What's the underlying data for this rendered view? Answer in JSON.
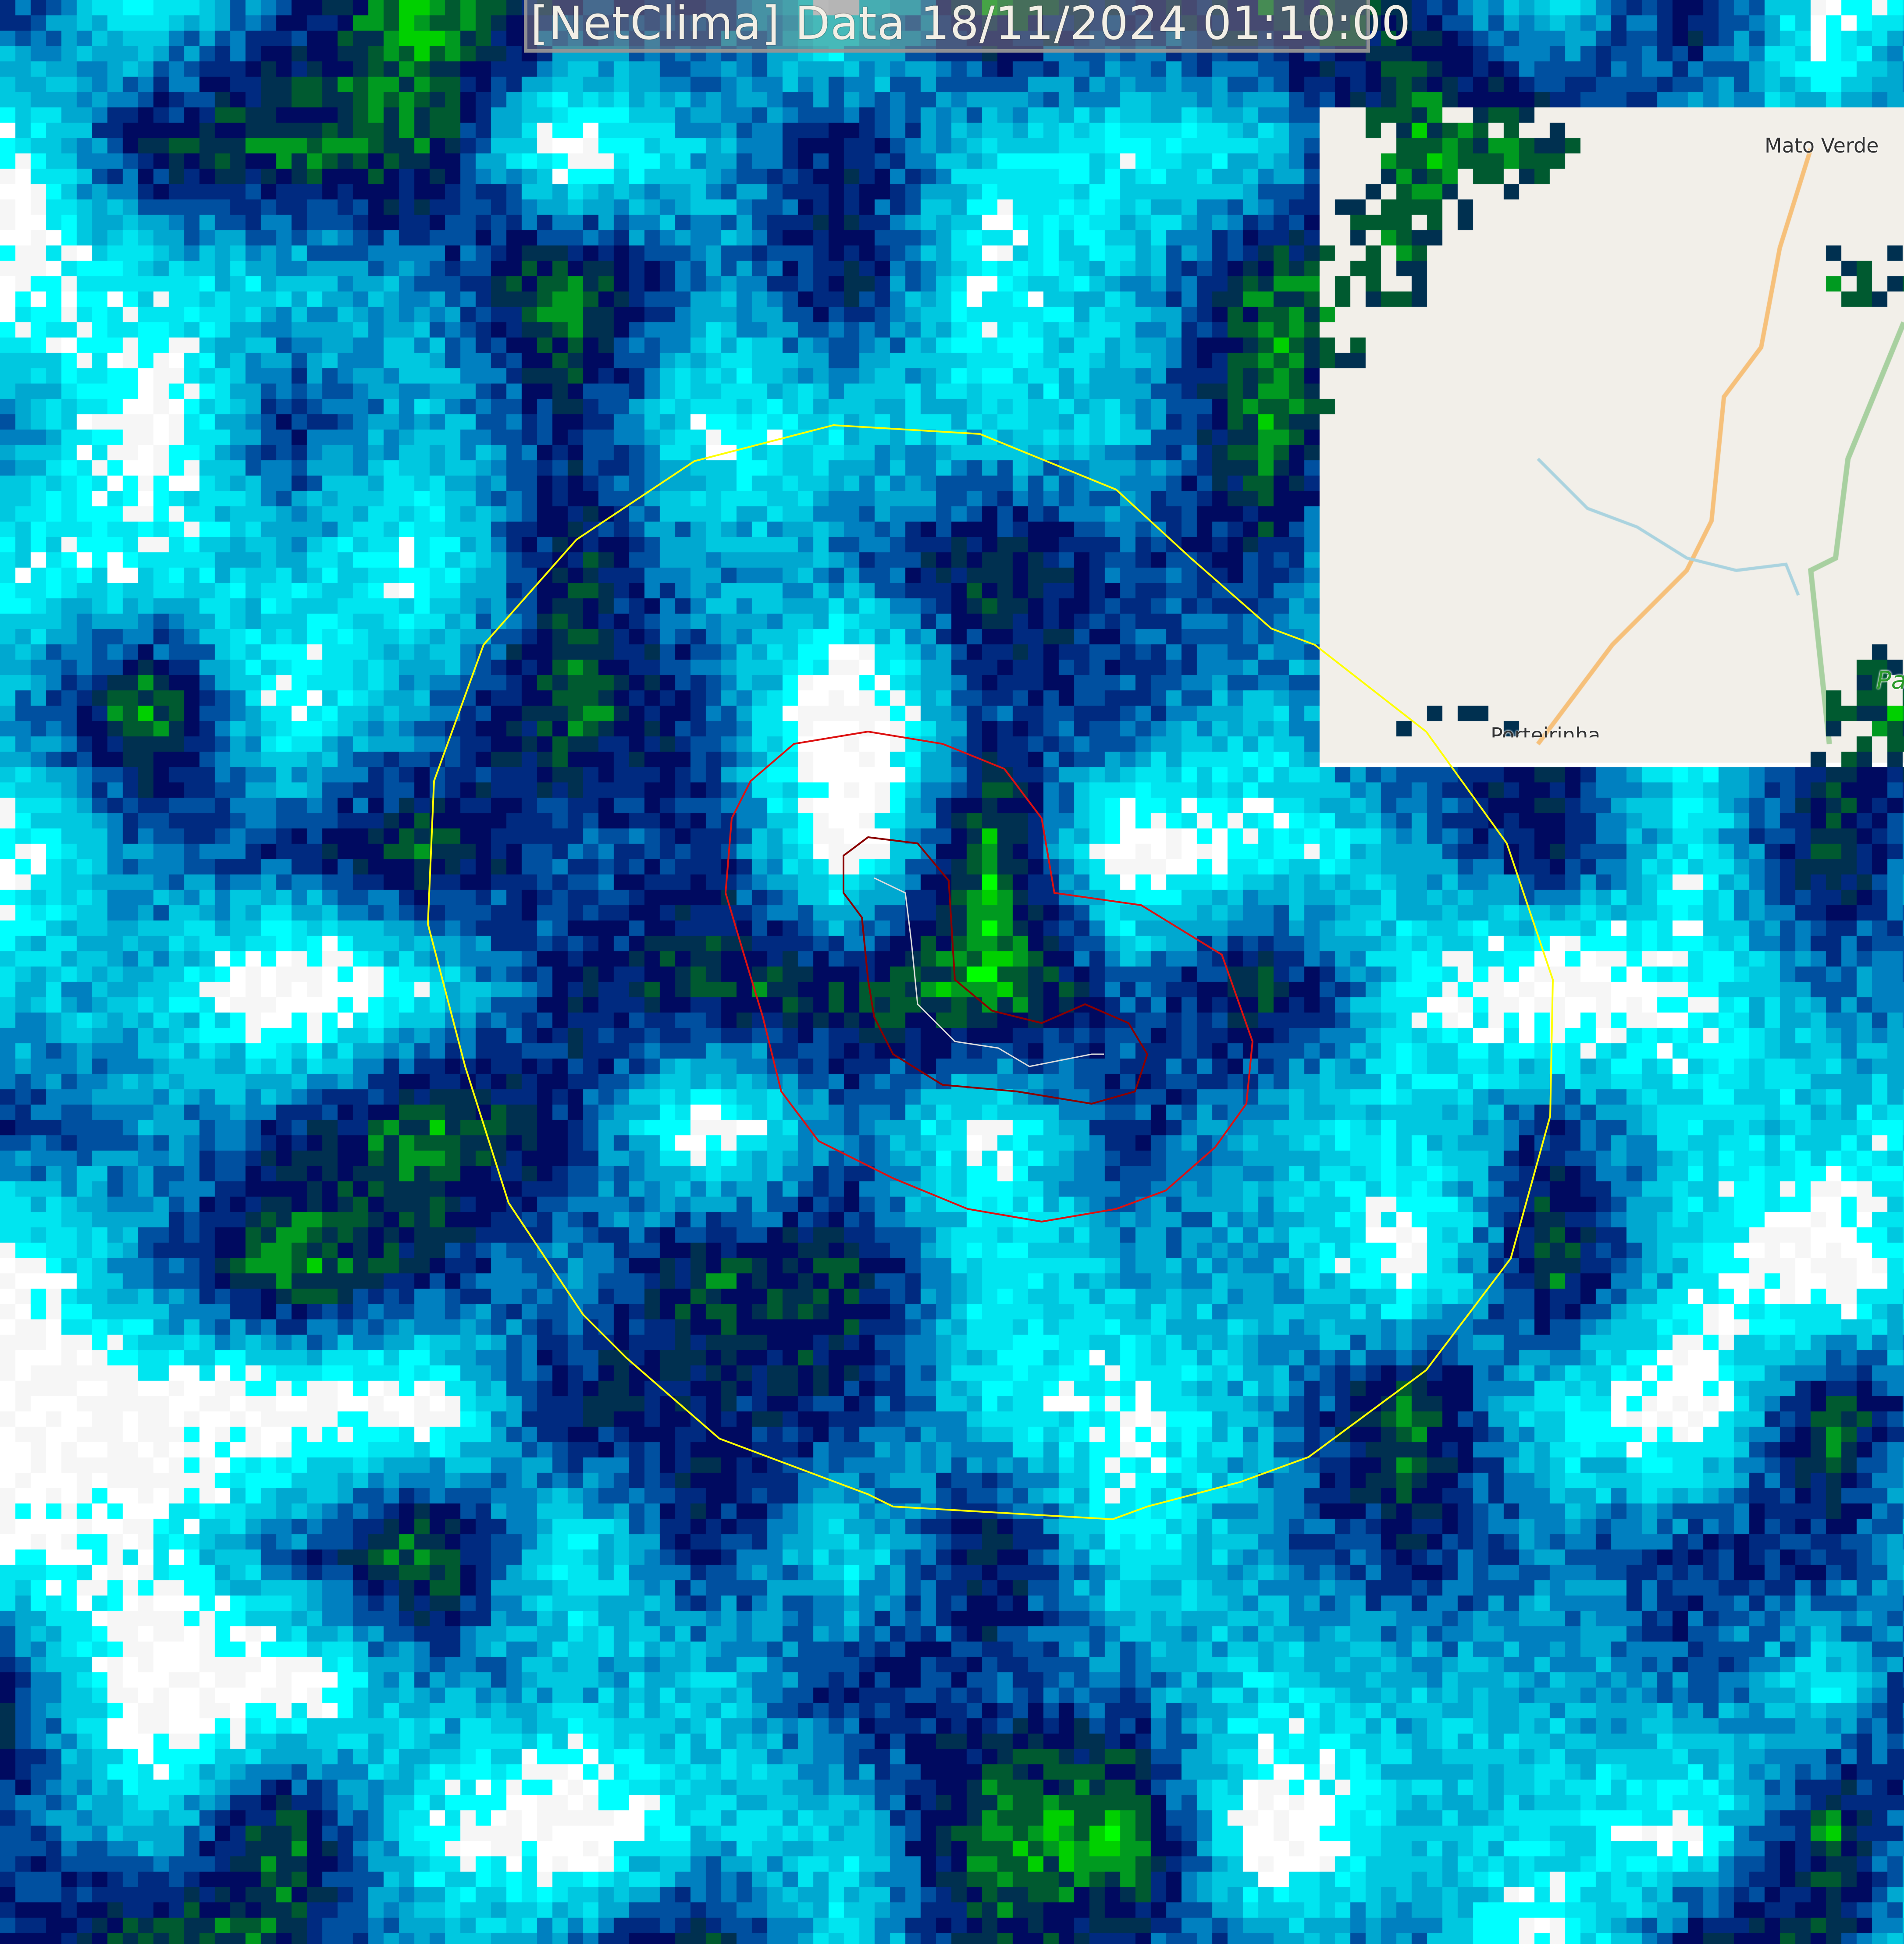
{
  "header": {
    "title": "[NetClima] Data 18/11/2024 01:10:00"
  },
  "map": {
    "places": [
      {
        "name": "Mato Verde"
      },
      {
        "name": "Porteirinha"
      },
      {
        "name": "Pa"
      }
    ],
    "colors": {
      "map_background": "#f2efe9",
      "boundary_ring": "#ffff00",
      "contour_outer": "#dd1111",
      "contour_inner": "#8b0000",
      "track": "#dddddd",
      "road": "#f6c07a",
      "river": "#aad3df"
    },
    "radar_palette": [
      "#00ffff",
      "#00e5f0",
      "#00c8e0",
      "#00a8d0",
      "#0080c0",
      "#0050a0",
      "#002a80",
      "#000a60",
      "#003050",
      "#005a30",
      "#009a20",
      "#00d000",
      "#00ff00"
    ]
  }
}
